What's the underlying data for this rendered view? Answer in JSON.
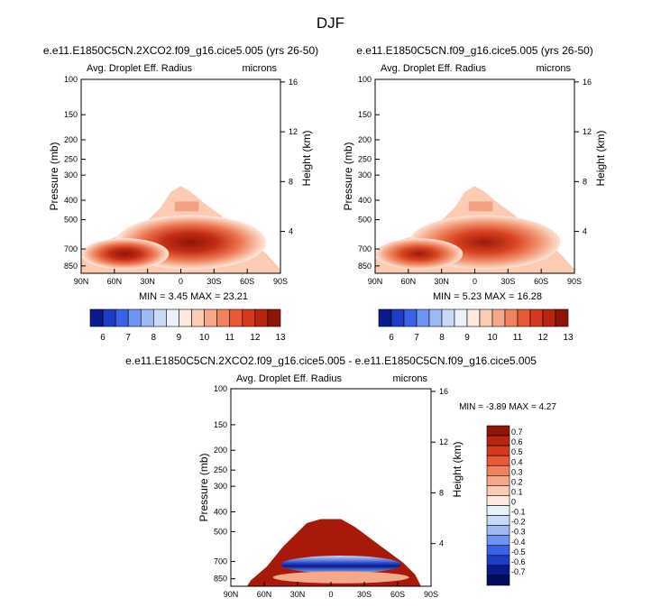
{
  "page_title": "DJF",
  "chart_data": [
    {
      "type": "heatmap",
      "title": "e.e11.E1850C5CN.2XCO2.f09_g16.cice5.005 (yrs 26-50)",
      "subtitle_left": "Avg. Droplet Eff. Radius",
      "subtitle_right": "microns",
      "ylabel": "Pressure (mb)",
      "y2label": "Height (km)",
      "x_ticks": [
        "90N",
        "60N",
        "30N",
        "0",
        "30S",
        "60S",
        "90S"
      ],
      "y_ticks": [
        "100",
        "150",
        "200",
        "250",
        "300",
        "400",
        "500",
        "700",
        "850"
      ],
      "y2_ticks": [
        "16",
        "12",
        "8",
        "4"
      ],
      "stats": {
        "min_label": "MIN =",
        "min": "3.45",
        "max_label": "MAX =",
        "max": "23.21"
      },
      "colorbar": {
        "orientation": "horizontal",
        "levels": [
          6,
          7,
          8,
          9,
          10,
          11,
          12,
          13
        ],
        "tick_labels": [
          "6",
          "7",
          "8",
          "9",
          "10",
          "11",
          "12",
          "13"
        ],
        "colors": [
          "#0a1a8c",
          "#1f3cc4",
          "#3a62e6",
          "#6f93f0",
          "#9fb9f4",
          "#c9daf8",
          "#eaf1fb",
          "#fde9df",
          "#fbcbb4",
          "#f6a98a",
          "#f0825f",
          "#e85a36",
          "#d63a1e",
          "#b82510",
          "#8e1508"
        ]
      }
    },
    {
      "type": "heatmap",
      "title": "e.e11.E1850C5CN.f09_g16.cice5.005 (yrs 26-50)",
      "subtitle_left": "Avg. Droplet Eff. Radius",
      "subtitle_right": "microns",
      "ylabel": "Pressure (mb)",
      "y2label": "Height (km)",
      "x_ticks": [
        "90N",
        "60N",
        "30N",
        "0",
        "30S",
        "60S",
        "90S"
      ],
      "y_ticks": [
        "100",
        "150",
        "200",
        "250",
        "300",
        "400",
        "500",
        "700",
        "850"
      ],
      "y2_ticks": [
        "16",
        "12",
        "8",
        "4"
      ],
      "stats": {
        "min_label": "MIN =",
        "min": "5.23",
        "max_label": "MAX =",
        "max": "16.28"
      },
      "colorbar": {
        "orientation": "horizontal",
        "levels": [
          6,
          7,
          8,
          9,
          10,
          11,
          12,
          13
        ],
        "tick_labels": [
          "6",
          "7",
          "8",
          "9",
          "10",
          "11",
          "12",
          "13"
        ],
        "colors": [
          "#0a1a8c",
          "#1f3cc4",
          "#3a62e6",
          "#6f93f0",
          "#9fb9f4",
          "#c9daf8",
          "#eaf1fb",
          "#fde9df",
          "#fbcbb4",
          "#f6a98a",
          "#f0825f",
          "#e85a36",
          "#d63a1e",
          "#b82510",
          "#8e1508"
        ]
      }
    },
    {
      "type": "heatmap",
      "title": "e.e11.E1850C5CN.2XCO2.f09_g16.cice5.005 - e.e11.E1850C5CN.f09_g16.cice5.005",
      "subtitle_left": "Avg. Droplet Eff. Radius",
      "subtitle_right": "microns",
      "ylabel": "Pressure (mb)",
      "y2label": "Height (km)",
      "x_ticks": [
        "90N",
        "60N",
        "30N",
        "0",
        "30S",
        "60S",
        "90S"
      ],
      "y_ticks": [
        "100",
        "150",
        "200",
        "250",
        "300",
        "400",
        "500",
        "700",
        "850"
      ],
      "y2_ticks": [
        "16",
        "12",
        "8",
        "4"
      ],
      "stats": {
        "min_label": "MIN =",
        "min": "-3.89",
        "max_label": "MAX =",
        "max": "4.27"
      },
      "colorbar": {
        "orientation": "vertical",
        "levels": [
          0.7,
          0.6,
          0.5,
          0.4,
          0.3,
          0.2,
          0.1,
          0,
          -0.1,
          -0.2,
          -0.3,
          -0.4,
          -0.5,
          -0.6,
          -0.7
        ],
        "tick_labels": [
          "0.7",
          "0.6",
          "0.5",
          "0.4",
          "0.3",
          "0.2",
          "0.1",
          "0",
          "-0.1",
          "-0.2",
          "-0.3",
          "-0.4",
          "-0.5",
          "-0.6",
          "-0.7"
        ],
        "colors": [
          "#8e1508",
          "#b82510",
          "#d63a1e",
          "#e85a36",
          "#f0825f",
          "#f6a98a",
          "#fbcbb4",
          "#fde9df",
          "#eaf1fb",
          "#c9daf8",
          "#9fb9f4",
          "#6f93f0",
          "#3a62e6",
          "#1f3cc4",
          "#0a1a8c",
          "#040a5c"
        ]
      }
    }
  ]
}
